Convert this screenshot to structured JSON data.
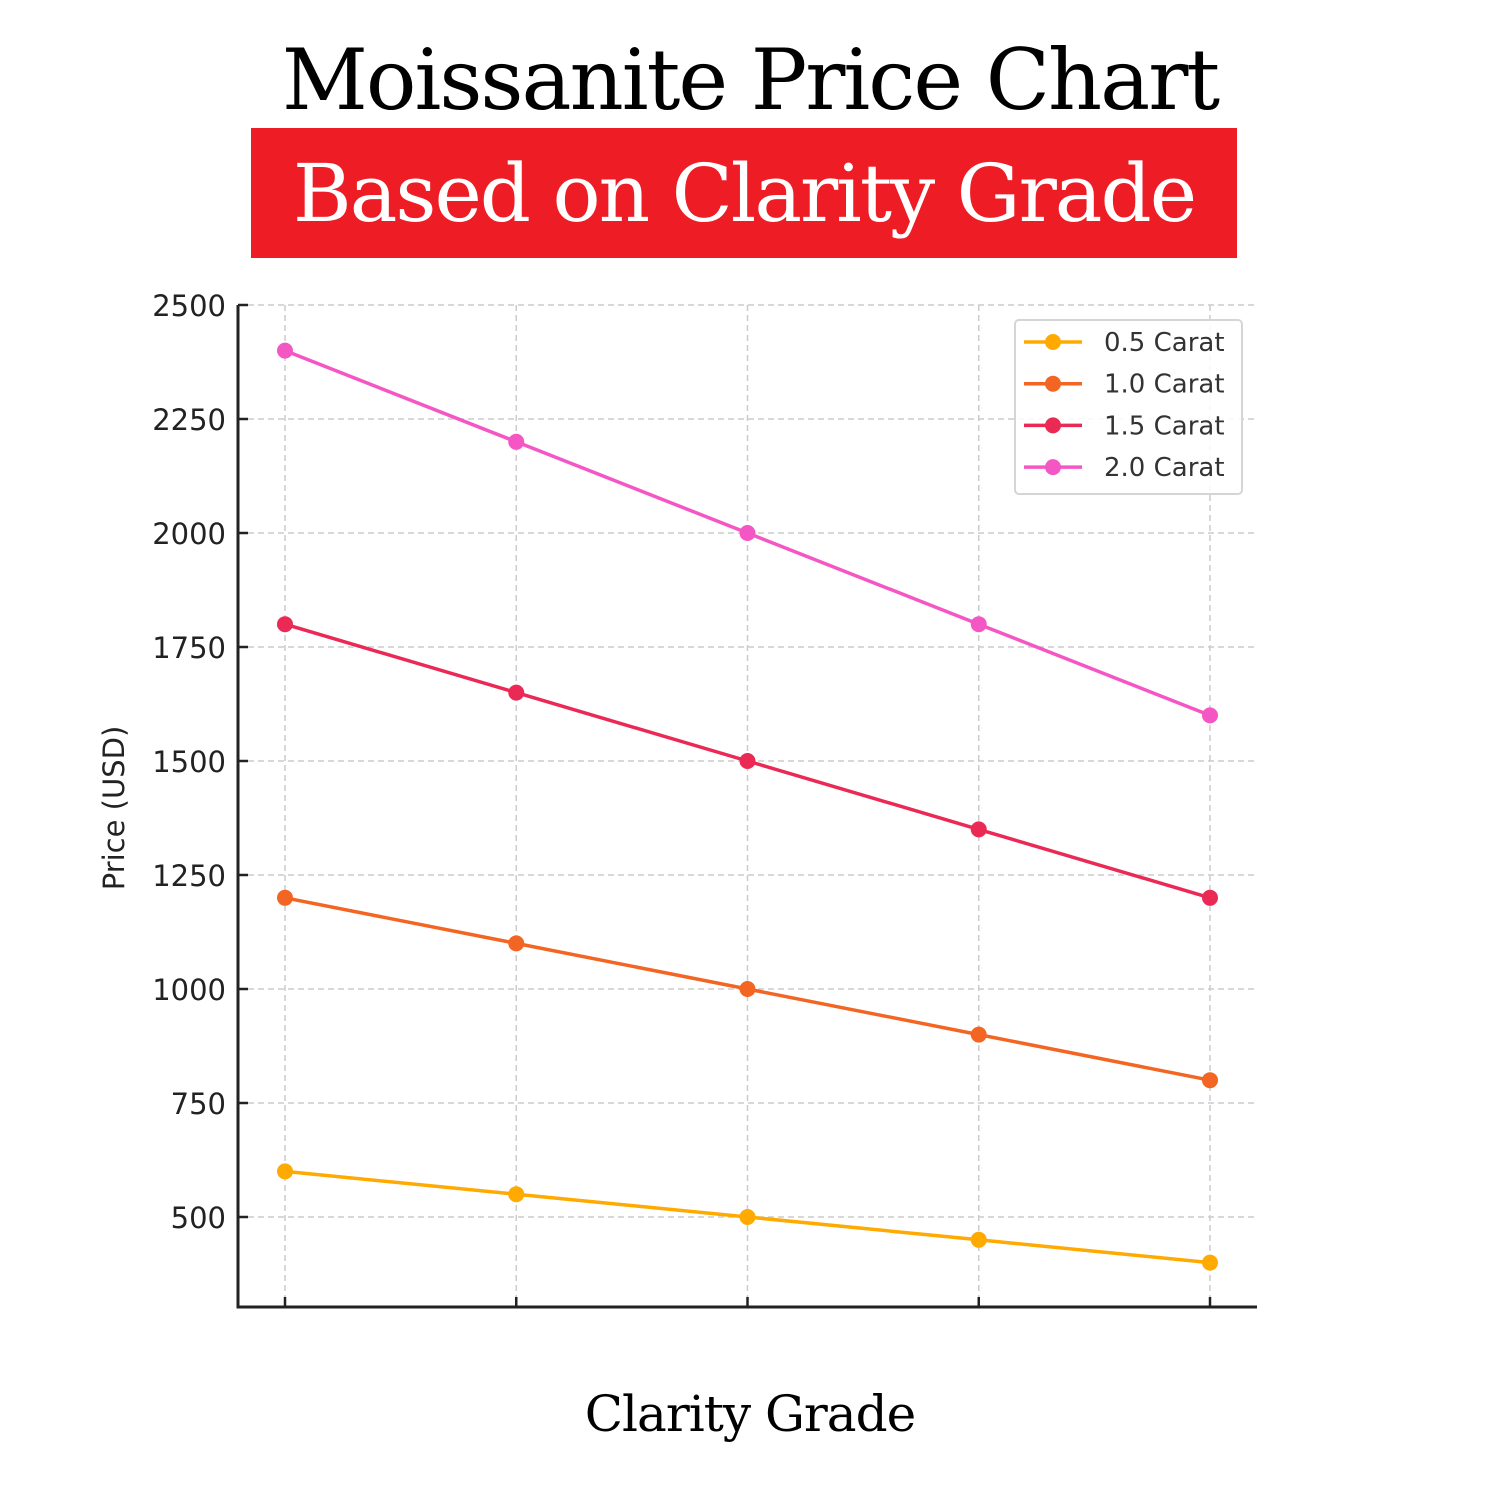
{
  "header": {
    "title": "Moissanite Price Chart",
    "subtitle": "Based on Clarity Grade",
    "subtitle_bg": "#ee1c25"
  },
  "chart_data": {
    "type": "line",
    "title": "Moissanite Price Chart",
    "subtitle": "Based on Clarity Grade",
    "xlabel": "Clarity Grade",
    "ylabel": "Price (USD)",
    "x": [
      1,
      2,
      3,
      4,
      5
    ],
    "x_tick_labels": [],
    "yticks": [
      500,
      750,
      1000,
      1250,
      1500,
      1750,
      2000,
      2250,
      2500
    ],
    "ylim": [
      300,
      2500
    ],
    "grid": true,
    "legend_position": "upper right",
    "series": [
      {
        "name": "0.5 Carat",
        "color": "#ffaa00",
        "values": [
          600,
          550,
          500,
          450,
          400
        ]
      },
      {
        "name": "1.0 Carat",
        "color": "#f26522",
        "values": [
          1200,
          1100,
          1000,
          900,
          800
        ]
      },
      {
        "name": "1.5 Carat",
        "color": "#ea2a55",
        "values": [
          1800,
          1650,
          1500,
          1350,
          1200
        ]
      },
      {
        "name": "2.0 Carat",
        "color": "#f457c4",
        "values": [
          2400,
          2200,
          2000,
          1800,
          1600
        ]
      }
    ]
  }
}
